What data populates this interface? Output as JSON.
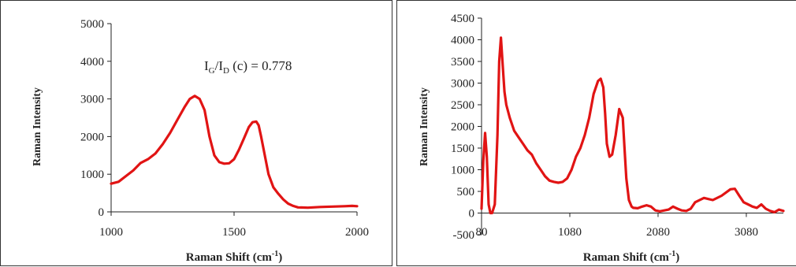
{
  "chart_data": [
    {
      "type": "line",
      "title": "",
      "xlabel": "Raman  Shift (cm",
      "xlabel_sup": "-1",
      "ylabel": "Raman Intensity",
      "xlim": [
        1000,
        2000
      ],
      "ylim": [
        0,
        5000
      ],
      "x_ticks": [
        1000,
        1500,
        2000
      ],
      "y_ticks": [
        0,
        1000,
        2000,
        3000,
        4000,
        5000
      ],
      "grid": false,
      "annotation": {
        "prefix": "I",
        "sub1": "G",
        "mid": "/I",
        "sub2": "D",
        "suffix": " (c) = 0.778"
      },
      "series": [
        {
          "color": "#e11414",
          "x": [
            1000,
            1030,
            1060,
            1090,
            1120,
            1150,
            1180,
            1210,
            1240,
            1270,
            1300,
            1320,
            1340,
            1360,
            1380,
            1400,
            1420,
            1440,
            1460,
            1480,
            1500,
            1520,
            1540,
            1560,
            1575,
            1590,
            1600,
            1610,
            1625,
            1640,
            1660,
            1680,
            1700,
            1720,
            1740,
            1760,
            1800,
            1850,
            1900,
            1950,
            1980,
            2000
          ],
          "y": [
            750,
            800,
            950,
            1100,
            1300,
            1400,
            1550,
            1800,
            2100,
            2450,
            2800,
            3000,
            3080,
            3000,
            2700,
            2000,
            1500,
            1320,
            1280,
            1290,
            1400,
            1650,
            1950,
            2250,
            2380,
            2400,
            2300,
            2000,
            1500,
            1000,
            650,
            480,
            330,
            220,
            160,
            120,
            110,
            130,
            140,
            150,
            160,
            150
          ]
        }
      ]
    },
    {
      "type": "line",
      "title": "",
      "xlabel": "Raman Shift (cm",
      "xlabel_sup": "-1",
      "ylabel": "Raman Intensity",
      "xlim": [
        80,
        3500
      ],
      "ylim": [
        -500,
        4500
      ],
      "x_ticks": [
        80,
        1080,
        2080,
        3080
      ],
      "y_ticks": [
        -500,
        0,
        500,
        1000,
        1500,
        2000,
        2500,
        3000,
        3500,
        4000,
        4500
      ],
      "grid": false,
      "series": [
        {
          "color": "#e11414",
          "x": [
            80,
            100,
            120,
            140,
            160,
            180,
            200,
            230,
            260,
            280,
            300,
            320,
            340,
            360,
            400,
            450,
            500,
            550,
            600,
            650,
            700,
            750,
            800,
            850,
            900,
            950,
            1000,
            1050,
            1100,
            1150,
            1200,
            1250,
            1300,
            1350,
            1400,
            1430,
            1460,
            1480,
            1500,
            1530,
            1560,
            1600,
            1640,
            1680,
            1700,
            1720,
            1750,
            1780,
            1800,
            1850,
            1900,
            1950,
            2000,
            2050,
            2100,
            2150,
            2200,
            2250,
            2300,
            2350,
            2400,
            2450,
            2500,
            2600,
            2700,
            2800,
            2900,
            2950,
            3000,
            3050,
            3100,
            3150,
            3200,
            3250,
            3300,
            3350,
            3400,
            3450,
            3500
          ],
          "y": [
            100,
            1200,
            1850,
            1300,
            200,
            0,
            0,
            200,
            1800,
            3500,
            4050,
            3400,
            2800,
            2500,
            2200,
            1900,
            1750,
            1600,
            1450,
            1350,
            1150,
            1000,
            850,
            750,
            720,
            700,
            720,
            800,
            1000,
            1300,
            1500,
            1800,
            2200,
            2750,
            3050,
            3100,
            2900,
            2300,
            1600,
            1300,
            1350,
            1800,
            2400,
            2200,
            1500,
            800,
            300,
            150,
            120,
            110,
            150,
            180,
            150,
            60,
            40,
            60,
            80,
            150,
            100,
            60,
            50,
            100,
            250,
            350,
            300,
            400,
            550,
            560,
            400,
            250,
            200,
            150,
            120,
            200,
            100,
            50,
            20,
            80,
            50
          ]
        }
      ]
    }
  ]
}
